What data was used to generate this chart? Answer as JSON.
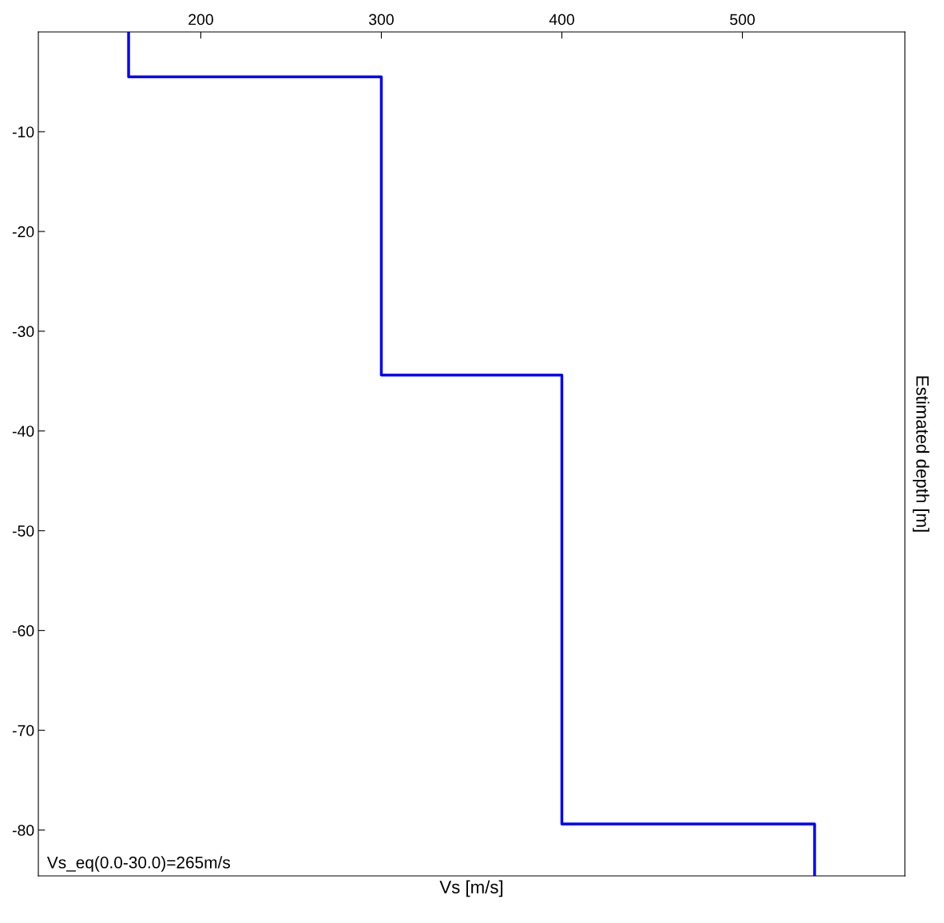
{
  "chart_data": {
    "type": "line",
    "xlabel": "Vs [m/s]",
    "ylabel": "Estimated depth [m]",
    "xlim": [
      110,
      590
    ],
    "xticks": [
      200,
      300,
      400,
      500
    ],
    "ylim": [
      -84.6,
      0
    ],
    "yticks": [
      -10,
      -20,
      -30,
      -40,
      -50,
      -60,
      -70,
      -80
    ],
    "series": [
      {
        "color": "#0000ff",
        "x": [
          160,
          160,
          300,
          300,
          400,
          400,
          540,
          540
        ],
        "values": [
          0,
          -4.5,
          -4.5,
          -34.4,
          -34.4,
          -79.4,
          -79.4,
          -84.6
        ]
      }
    ],
    "annotations": [
      "Vs_eq(0.0-30.0)=265m/s"
    ],
    "grid": false,
    "legend": false,
    "marker": "none",
    "line_style": "solid"
  }
}
